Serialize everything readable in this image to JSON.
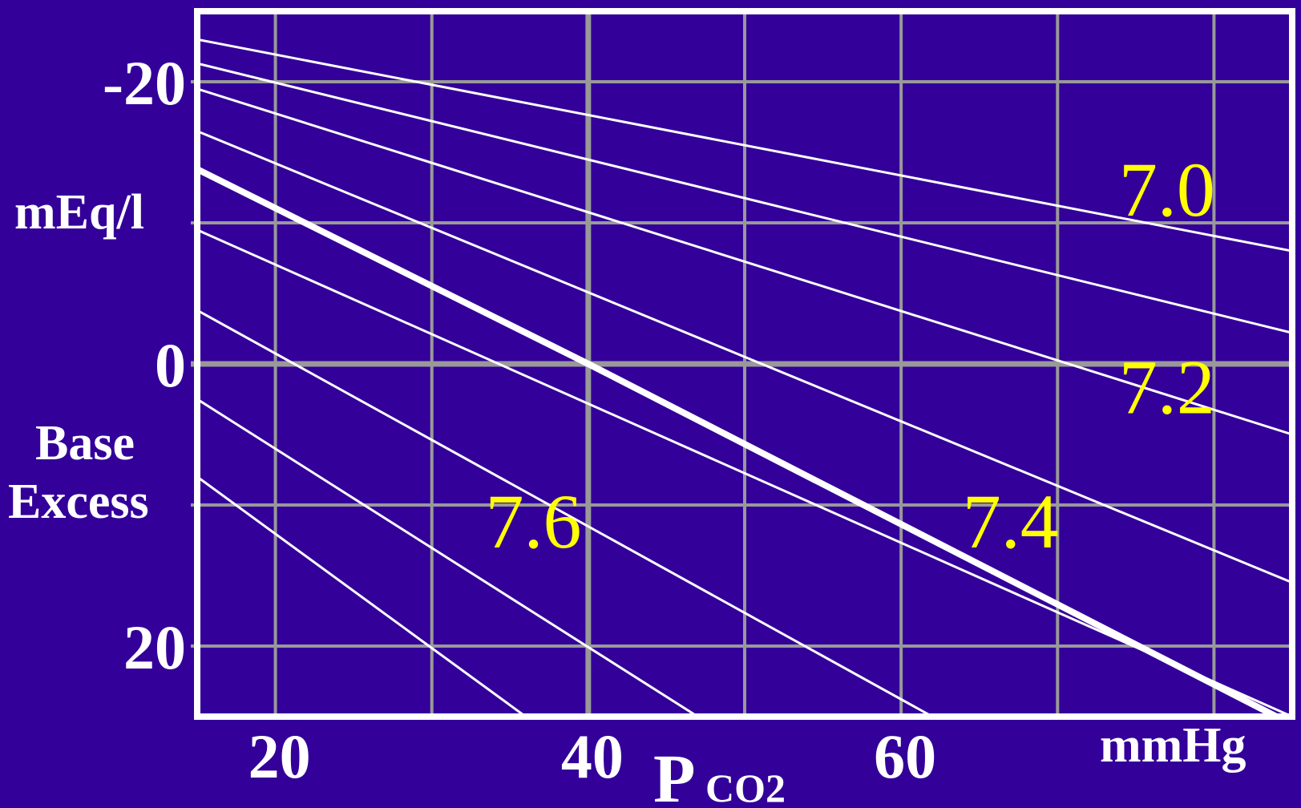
{
  "colors": {
    "background": "#330099",
    "frame": "#ffffff",
    "grid": "#999999",
    "line": "#ffffff",
    "label": "#ffff00"
  },
  "chart_data": {
    "type": "line",
    "x_ticks": [
      "20",
      "40",
      "60"
    ],
    "x_tick_values": [
      20,
      40,
      60
    ],
    "x_label_main": "P",
    "x_label_sub": "CO2",
    "x_unit": "mmHg",
    "y_ticks": [
      "-20",
      "0",
      "20"
    ],
    "y_tick_values": [
      -20,
      0,
      20
    ],
    "y_unit": "mEq/l",
    "y_label_line1": "Base",
    "y_label_line2": "Excess",
    "y_inverted": true,
    "xlim": [
      15,
      85
    ],
    "ylim": [
      -25,
      25
    ],
    "grid": true,
    "x_grid": [
      20,
      30,
      40,
      50,
      60,
      70,
      80
    ],
    "y_grid": [
      -20,
      -10,
      0,
      10,
      20
    ],
    "series": [
      {
        "name": "7.0",
        "label": "7.0",
        "bold": false,
        "points": [
          [
            15,
            -23
          ],
          [
            85,
            -8
          ]
        ]
      },
      {
        "name": "",
        "bold": false,
        "points": [
          [
            15,
            -21.3
          ],
          [
            85,
            -2.2
          ]
        ]
      },
      {
        "name": "",
        "bold": false,
        "points": [
          [
            15,
            -19.5
          ],
          [
            85,
            5
          ]
        ]
      },
      {
        "name": "7.2",
        "label": "7.2",
        "bold": false,
        "points": [
          [
            15,
            -16.5
          ],
          [
            85,
            15.5
          ]
        ]
      },
      {
        "name": "7.4",
        "label": "7.4",
        "bold": true,
        "points": [
          [
            15,
            -13.8
          ],
          [
            40,
            0
          ],
          [
            84,
            25
          ]
        ]
      },
      {
        "name": "",
        "bold": false,
        "points": [
          [
            15,
            -9.5
          ],
          [
            85,
            25
          ]
        ]
      },
      {
        "name": "",
        "bold": false,
        "points": [
          [
            15,
            -3.8
          ],
          [
            62,
            25
          ]
        ]
      },
      {
        "name": "7.6",
        "label": "7.6",
        "bold": false,
        "points": [
          [
            15,
            2.5
          ],
          [
            47,
            25
          ]
        ]
      },
      {
        "name": "",
        "bold": false,
        "points": [
          [
            15,
            8
          ],
          [
            36,
            25
          ]
        ]
      }
    ],
    "series_labels": [
      {
        "text": "7.0",
        "x": 77,
        "y": -10.5
      },
      {
        "text": "7.2",
        "x": 77,
        "y": 3.5
      },
      {
        "text": "7.4",
        "x": 67,
        "y": 13
      },
      {
        "text": "7.6",
        "x": 36.5,
        "y": 13
      }
    ]
  }
}
